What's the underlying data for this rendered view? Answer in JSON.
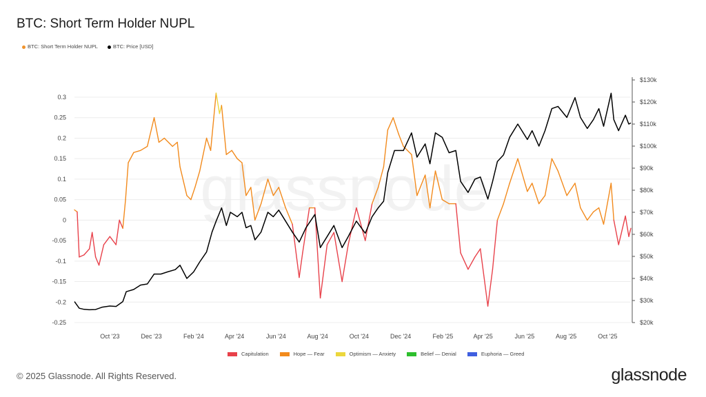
{
  "header": {
    "title": "BTC: Short Term Holder NUPL"
  },
  "footer": {
    "copyright": "© 2025 Glassnode. All Rights Reserved.",
    "brand": "glassnode"
  },
  "watermark": "glassnode",
  "chart_data": {
    "type": "line",
    "title": "BTC: Short Term Holder NUPL",
    "legend": [
      {
        "name": "BTC: Short Term Holder NUPL",
        "color": "#f0932b"
      },
      {
        "name": "BTC: Price [USD]",
        "color": "#000000"
      }
    ],
    "regimes": [
      {
        "name": "Capitulation",
        "color": "#e8414a",
        "range": [
          -1,
          0
        ]
      },
      {
        "name": "Hope — Fear",
        "color": "#f28a1c",
        "range": [
          0,
          0.25
        ]
      },
      {
        "name": "Optimism — Anxiety",
        "color": "#ecd73c",
        "range": [
          0.25,
          0.5
        ]
      },
      {
        "name": "Belief — Denial",
        "color": "#2dbf2d",
        "range": [
          0.5,
          0.75
        ]
      },
      {
        "name": "Euphoria — Greed",
        "color": "#3f5fe0",
        "range": [
          0.75,
          1
        ]
      }
    ],
    "x_range": [
      "2023-08-10",
      "2025-11-04"
    ],
    "x_ticks": [
      {
        "label": "Oct '23",
        "date": "2023-10-01"
      },
      {
        "label": "Dec '23",
        "date": "2023-12-01"
      },
      {
        "label": "Feb '24",
        "date": "2024-02-01"
      },
      {
        "label": "Apr '24",
        "date": "2024-04-01"
      },
      {
        "label": "Jun '24",
        "date": "2024-06-01"
      },
      {
        "label": "Aug '24",
        "date": "2024-08-01"
      },
      {
        "label": "Oct '24",
        "date": "2024-10-01"
      },
      {
        "label": "Dec '24",
        "date": "2024-12-01"
      },
      {
        "label": "Feb '25",
        "date": "2025-02-01"
      },
      {
        "label": "Apr '25",
        "date": "2025-04-01"
      },
      {
        "label": "Jun '25",
        "date": "2025-06-01"
      },
      {
        "label": "Aug '25",
        "date": "2025-08-01"
      },
      {
        "label": "Oct '25",
        "date": "2025-10-01"
      }
    ],
    "y_left": {
      "range": [
        -0.25,
        0.3
      ],
      "ticks": [
        "0.3",
        "0.25",
        "0.2",
        "0.15",
        "0.1",
        "0.05",
        "0",
        "-0.05",
        "-0.1",
        "-0.15",
        "-0.2",
        "-0.25"
      ]
    },
    "y_right": {
      "range": [
        20000,
        130000
      ],
      "scale": "linear",
      "ticks": [
        "$130k",
        "$120k",
        "$110k",
        "$100k",
        "$90k",
        "$80k",
        "$70k",
        "$60k",
        "$50k",
        "$40k",
        "$30k",
        "$20k"
      ]
    },
    "grid": true,
    "series": [
      {
        "name": "BTC: Short Term Holder NUPL",
        "points": [
          [
            "2023-08-10",
            0.025
          ],
          [
            "2023-08-14",
            0.02
          ],
          [
            "2023-08-17",
            -0.09
          ],
          [
            "2023-08-24",
            -0.085
          ],
          [
            "2023-09-01",
            -0.07
          ],
          [
            "2023-09-05",
            -0.03
          ],
          [
            "2023-09-10",
            -0.09
          ],
          [
            "2023-09-15",
            -0.11
          ],
          [
            "2023-09-22",
            -0.06
          ],
          [
            "2023-10-01",
            -0.04
          ],
          [
            "2023-10-10",
            -0.06
          ],
          [
            "2023-10-15",
            0.0
          ],
          [
            "2023-10-20",
            -0.02
          ],
          [
            "2023-10-24",
            0.05
          ],
          [
            "2023-10-28",
            0.14
          ],
          [
            "2023-11-05",
            0.165
          ],
          [
            "2023-11-15",
            0.17
          ],
          [
            "2023-11-25",
            0.18
          ],
          [
            "2023-12-05",
            0.25
          ],
          [
            "2023-12-12",
            0.19
          ],
          [
            "2023-12-20",
            0.2
          ],
          [
            "2024-01-01",
            0.18
          ],
          [
            "2024-01-08",
            0.19
          ],
          [
            "2024-01-12",
            0.13
          ],
          [
            "2024-01-22",
            0.06
          ],
          [
            "2024-01-28",
            0.05
          ],
          [
            "2024-02-03",
            0.08
          ],
          [
            "2024-02-10",
            0.12
          ],
          [
            "2024-02-20",
            0.2
          ],
          [
            "2024-02-26",
            0.17
          ],
          [
            "2024-03-05",
            0.31
          ],
          [
            "2024-03-10",
            0.26
          ],
          [
            "2024-03-13",
            0.28
          ],
          [
            "2024-03-20",
            0.16
          ],
          [
            "2024-03-28",
            0.17
          ],
          [
            "2024-04-05",
            0.15
          ],
          [
            "2024-04-12",
            0.14
          ],
          [
            "2024-04-18",
            0.06
          ],
          [
            "2024-04-25",
            0.08
          ],
          [
            "2024-05-01",
            0.0
          ],
          [
            "2024-05-10",
            0.04
          ],
          [
            "2024-05-20",
            0.1
          ],
          [
            "2024-05-28",
            0.06
          ],
          [
            "2024-06-05",
            0.08
          ],
          [
            "2024-06-15",
            0.03
          ],
          [
            "2024-06-25",
            -0.01
          ],
          [
            "2024-07-05",
            -0.14
          ],
          [
            "2024-07-10",
            -0.08
          ],
          [
            "2024-07-20",
            0.03
          ],
          [
            "2024-07-28",
            0.03
          ],
          [
            "2024-08-05",
            -0.19
          ],
          [
            "2024-08-15",
            -0.06
          ],
          [
            "2024-08-25",
            -0.03
          ],
          [
            "2024-09-06",
            -0.15
          ],
          [
            "2024-09-15",
            -0.06
          ],
          [
            "2024-09-27",
            0.03
          ],
          [
            "2024-10-10",
            -0.05
          ],
          [
            "2024-10-20",
            0.04
          ],
          [
            "2024-10-29",
            0.08
          ],
          [
            "2024-11-06",
            0.13
          ],
          [
            "2024-11-12",
            0.22
          ],
          [
            "2024-11-20",
            0.25
          ],
          [
            "2024-11-28",
            0.21
          ],
          [
            "2024-12-05",
            0.18
          ],
          [
            "2024-12-17",
            0.16
          ],
          [
            "2024-12-25",
            0.06
          ],
          [
            "2025-01-06",
            0.11
          ],
          [
            "2025-01-13",
            0.03
          ],
          [
            "2025-01-21",
            0.12
          ],
          [
            "2025-01-31",
            0.05
          ],
          [
            "2025-02-10",
            0.04
          ],
          [
            "2025-02-20",
            0.04
          ],
          [
            "2025-02-27",
            -0.08
          ],
          [
            "2025-03-10",
            -0.12
          ],
          [
            "2025-03-20",
            -0.09
          ],
          [
            "2025-03-28",
            -0.07
          ],
          [
            "2025-04-08",
            -0.21
          ],
          [
            "2025-04-15",
            -0.12
          ],
          [
            "2025-04-22",
            0.0
          ],
          [
            "2025-05-01",
            0.04
          ],
          [
            "2025-05-10",
            0.09
          ],
          [
            "2025-05-22",
            0.15
          ],
          [
            "2025-06-05",
            0.07
          ],
          [
            "2025-06-12",
            0.09
          ],
          [
            "2025-06-22",
            0.04
          ],
          [
            "2025-07-01",
            0.06
          ],
          [
            "2025-07-11",
            0.15
          ],
          [
            "2025-07-20",
            0.12
          ],
          [
            "2025-08-02",
            0.06
          ],
          [
            "2025-08-14",
            0.09
          ],
          [
            "2025-08-22",
            0.03
          ],
          [
            "2025-09-01",
            0.0
          ],
          [
            "2025-09-10",
            0.02
          ],
          [
            "2025-09-18",
            0.03
          ],
          [
            "2025-09-25",
            -0.01
          ],
          [
            "2025-10-06",
            0.09
          ],
          [
            "2025-10-10",
            0.0
          ],
          [
            "2025-10-17",
            -0.06
          ],
          [
            "2025-10-27",
            0.01
          ],
          [
            "2025-11-01",
            -0.04
          ],
          [
            "2025-11-04",
            -0.02
          ]
        ]
      },
      {
        "name": "BTC: Price [USD]",
        "points": [
          [
            "2023-08-10",
            29500
          ],
          [
            "2023-08-17",
            26500
          ],
          [
            "2023-08-24",
            26000
          ],
          [
            "2023-09-01",
            25800
          ],
          [
            "2023-09-10",
            25900
          ],
          [
            "2023-09-20",
            27000
          ],
          [
            "2023-10-01",
            27500
          ],
          [
            "2023-10-10",
            27300
          ],
          [
            "2023-10-20",
            29500
          ],
          [
            "2023-10-25",
            34000
          ],
          [
            "2023-11-05",
            35000
          ],
          [
            "2023-11-15",
            37000
          ],
          [
            "2023-11-25",
            37500
          ],
          [
            "2023-12-05",
            42000
          ],
          [
            "2023-12-15",
            42000
          ],
          [
            "2023-12-25",
            43000
          ],
          [
            "2024-01-05",
            44000
          ],
          [
            "2024-01-12",
            46000
          ],
          [
            "2024-01-22",
            40000
          ],
          [
            "2024-02-01",
            43000
          ],
          [
            "2024-02-10",
            47500
          ],
          [
            "2024-02-20",
            52000
          ],
          [
            "2024-02-28",
            61000
          ],
          [
            "2024-03-05",
            66000
          ],
          [
            "2024-03-13",
            72000
          ],
          [
            "2024-03-20",
            64000
          ],
          [
            "2024-03-26",
            70000
          ],
          [
            "2024-04-05",
            68000
          ],
          [
            "2024-04-12",
            70000
          ],
          [
            "2024-04-18",
            63000
          ],
          [
            "2024-04-25",
            64000
          ],
          [
            "2024-05-01",
            57500
          ],
          [
            "2024-05-10",
            61000
          ],
          [
            "2024-05-20",
            70000
          ],
          [
            "2024-05-28",
            68000
          ],
          [
            "2024-06-05",
            71000
          ],
          [
            "2024-06-15",
            66000
          ],
          [
            "2024-06-25",
            61000
          ],
          [
            "2024-07-05",
            56500
          ],
          [
            "2024-07-15",
            63000
          ],
          [
            "2024-07-28",
            69000
          ],
          [
            "2024-08-05",
            54000
          ],
          [
            "2024-08-15",
            59000
          ],
          [
            "2024-08-25",
            64000
          ],
          [
            "2024-09-06",
            54000
          ],
          [
            "2024-09-15",
            59000
          ],
          [
            "2024-09-27",
            66000
          ],
          [
            "2024-10-10",
            60500
          ],
          [
            "2024-10-20",
            68000
          ],
          [
            "2024-10-29",
            72000
          ],
          [
            "2024-11-06",
            75000
          ],
          [
            "2024-11-12",
            88000
          ],
          [
            "2024-11-22",
            98000
          ],
          [
            "2024-12-05",
            98000
          ],
          [
            "2024-12-17",
            106000
          ],
          [
            "2024-12-25",
            95000
          ],
          [
            "2025-01-06",
            101000
          ],
          [
            "2025-01-13",
            92000
          ],
          [
            "2025-01-21",
            106000
          ],
          [
            "2025-01-31",
            104000
          ],
          [
            "2025-02-10",
            97000
          ],
          [
            "2025-02-20",
            98000
          ],
          [
            "2025-02-27",
            84000
          ],
          [
            "2025-03-10",
            79000
          ],
          [
            "2025-03-20",
            85000
          ],
          [
            "2025-03-28",
            86000
          ],
          [
            "2025-04-08",
            76000
          ],
          [
            "2025-04-15",
            84000
          ],
          [
            "2025-04-22",
            93000
          ],
          [
            "2025-05-01",
            96000
          ],
          [
            "2025-05-10",
            104000
          ],
          [
            "2025-05-22",
            110000
          ],
          [
            "2025-06-05",
            103000
          ],
          [
            "2025-06-12",
            107000
          ],
          [
            "2025-06-22",
            100000
          ],
          [
            "2025-07-01",
            107000
          ],
          [
            "2025-07-11",
            117000
          ],
          [
            "2025-07-20",
            118000
          ],
          [
            "2025-08-02",
            113000
          ],
          [
            "2025-08-14",
            122000
          ],
          [
            "2025-08-22",
            113000
          ],
          [
            "2025-09-01",
            108000
          ],
          [
            "2025-09-10",
            112000
          ],
          [
            "2025-09-18",
            117000
          ],
          [
            "2025-09-25",
            109000
          ],
          [
            "2025-10-06",
            124000
          ],
          [
            "2025-10-10",
            112000
          ],
          [
            "2025-10-17",
            107000
          ],
          [
            "2025-10-27",
            114000
          ],
          [
            "2025-11-01",
            110000
          ],
          [
            "2025-11-04",
            110500
          ]
        ]
      }
    ]
  }
}
